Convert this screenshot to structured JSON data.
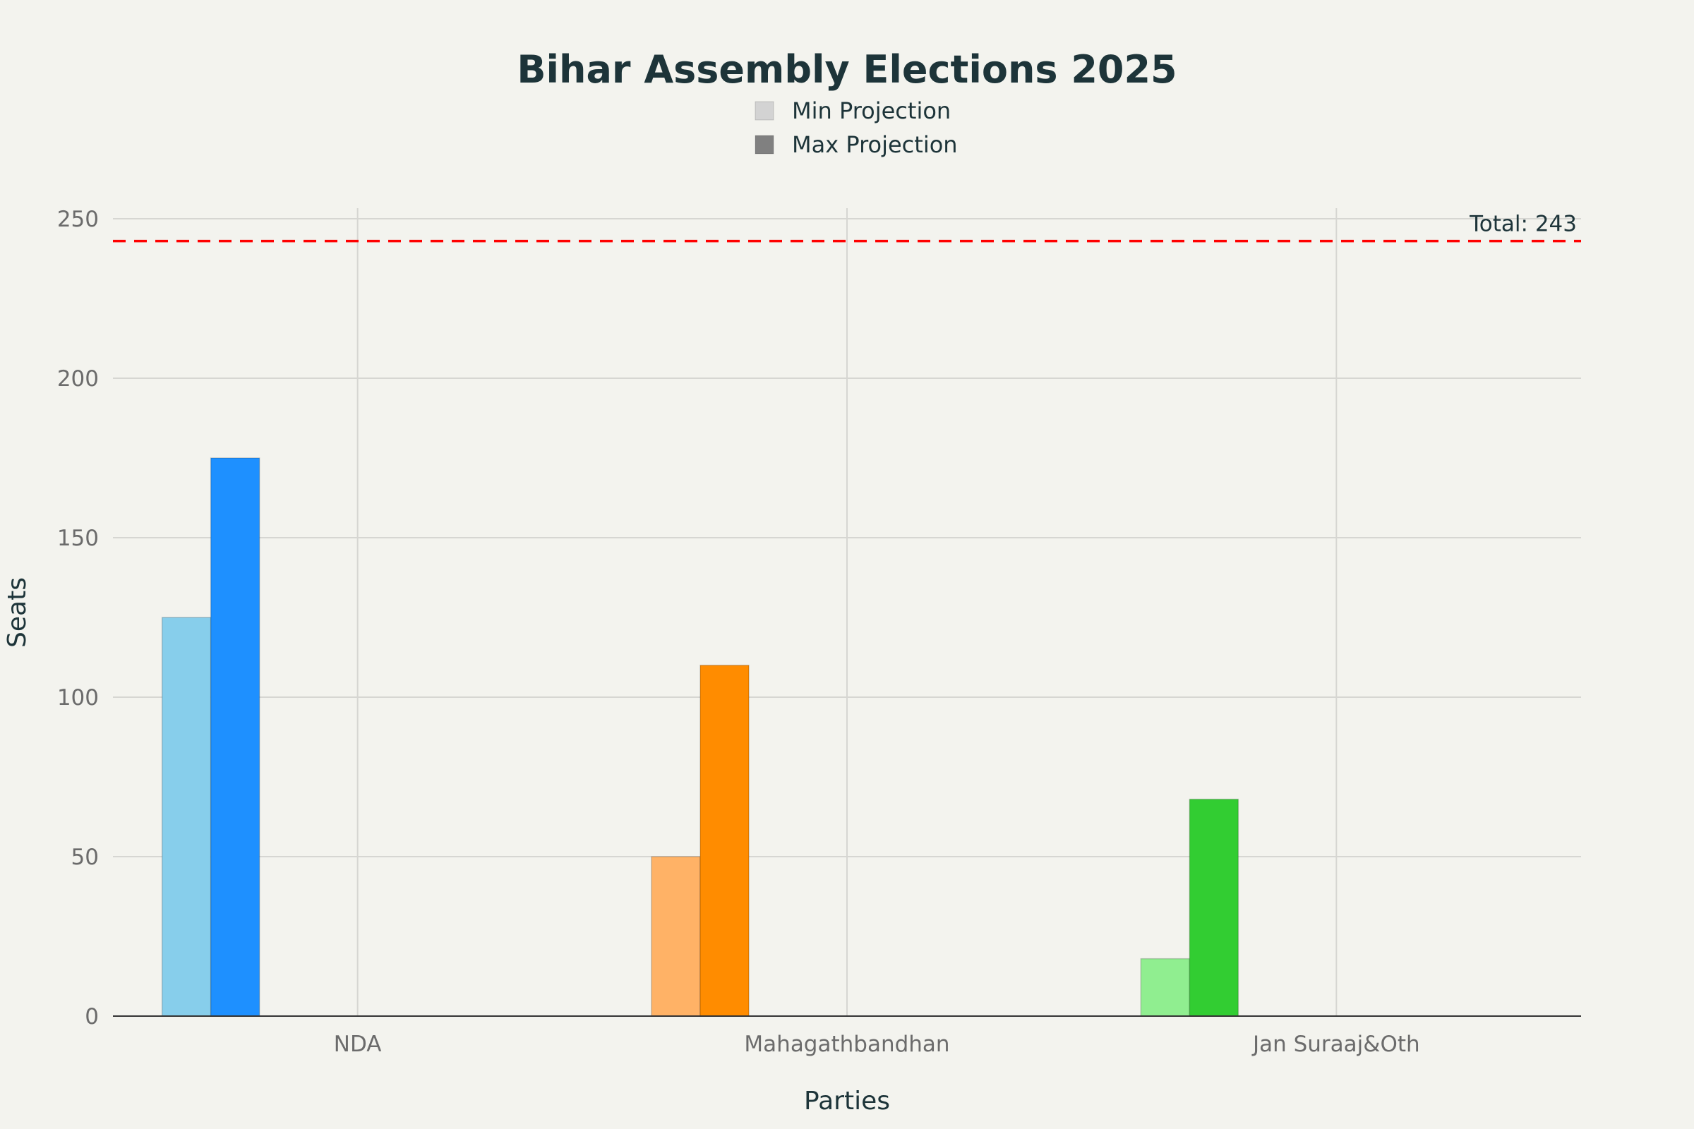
{
  "chart_data": {
    "type": "bar",
    "title": "Bihar Assembly Elections 2025",
    "xlabel": "Parties",
    "ylabel": "Seats",
    "categories": [
      "NDA",
      "Mahagathbandhan",
      "Jan Suraaj&Oth"
    ],
    "series": [
      {
        "name": "Min Projection",
        "values": [
          125,
          50,
          18
        ],
        "colors": [
          "#87ceeb",
          "#ffb266",
          "#90ee90"
        ],
        "legend_color": "#d3d3d3"
      },
      {
        "name": "Max Projection",
        "values": [
          175,
          110,
          68
        ],
        "colors": [
          "#1e90ff",
          "#ff8c00",
          "#32cd32"
        ],
        "legend_color": "#808080"
      }
    ],
    "ylim": [
      0,
      253
    ],
    "yticks": [
      0,
      50,
      100,
      150,
      200,
      250
    ],
    "reference_line": {
      "value": 243,
      "label": "Total: 243",
      "color": "#ff0000"
    },
    "grid": true,
    "legend_placement": "top-center"
  }
}
